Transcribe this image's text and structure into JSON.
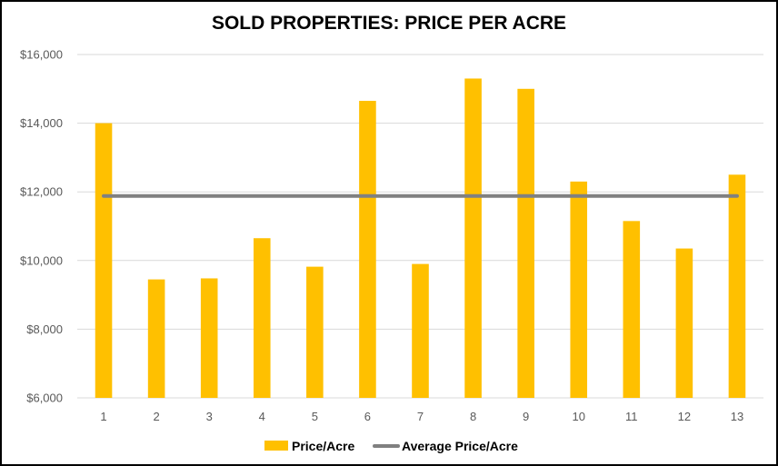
{
  "chart_data": {
    "type": "bar",
    "title": "SOLD PROPERTIES: PRICE PER ACRE",
    "xlabel": "",
    "ylabel": "",
    "categories": [
      "1",
      "2",
      "3",
      "4",
      "5",
      "6",
      "7",
      "8",
      "9",
      "10",
      "11",
      "12",
      "13"
    ],
    "series": [
      {
        "name": "Price/Acre",
        "kind": "bar",
        "color": "#FFC000",
        "values": [
          14000,
          9450,
          9480,
          10650,
          9820,
          14650,
          9900,
          15300,
          15000,
          12300,
          11150,
          10350,
          12500
        ]
      },
      {
        "name": "Average Price/Acre",
        "kind": "line",
        "color": "#808080",
        "values": [
          11880,
          11880,
          11880,
          11880,
          11880,
          11880,
          11880,
          11880,
          11880,
          11880,
          11880,
          11880,
          11880
        ]
      }
    ],
    "ylim": [
      6000,
      16000
    ],
    "yticks": [
      6000,
      8000,
      10000,
      12000,
      14000,
      16000
    ],
    "ytick_labels": [
      "$6,000",
      "$8,000",
      "$10,000",
      "$12,000",
      "$14,000",
      "$16,000"
    ],
    "grid": true,
    "legend_position": "bottom"
  }
}
